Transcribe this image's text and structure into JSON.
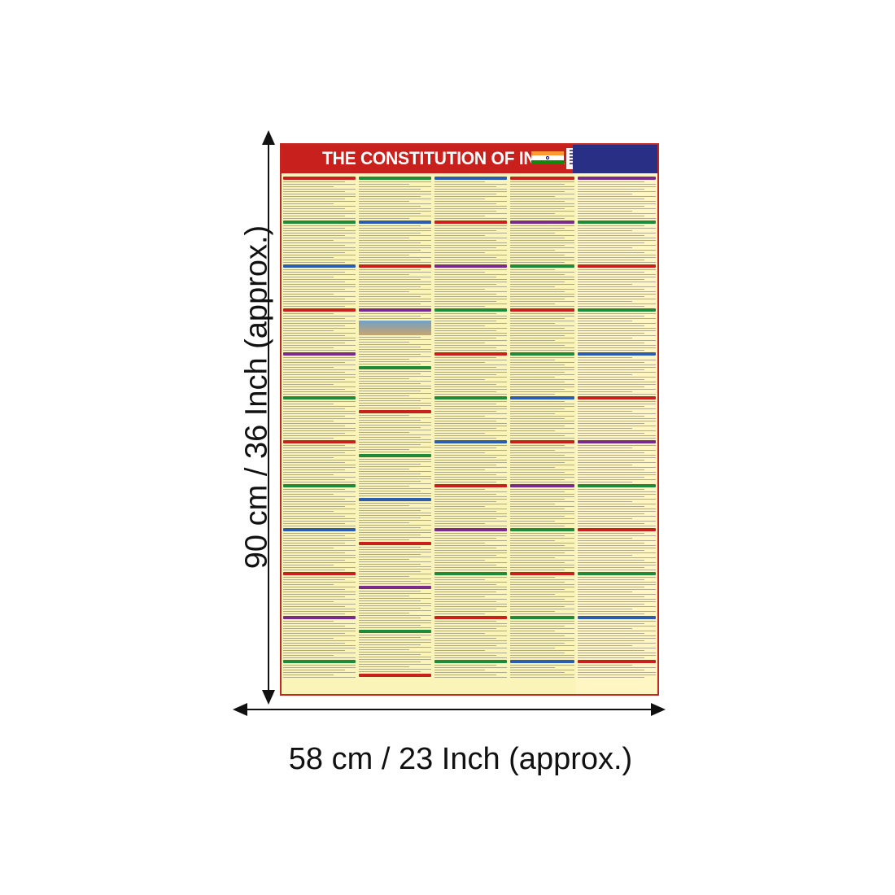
{
  "poster": {
    "title": "THE CONSTITUTION OF INDIA"
  },
  "dimensions": {
    "height_label": "90 cm / 36 Inch (approx.)",
    "width_label": "58 cm / 23 Inch (approx.)"
  },
  "colors": {
    "header_red": "#c8201c",
    "header_blue": "#2a2f86",
    "poster_bg": "#fbf4b8",
    "arrow": "#111111"
  }
}
